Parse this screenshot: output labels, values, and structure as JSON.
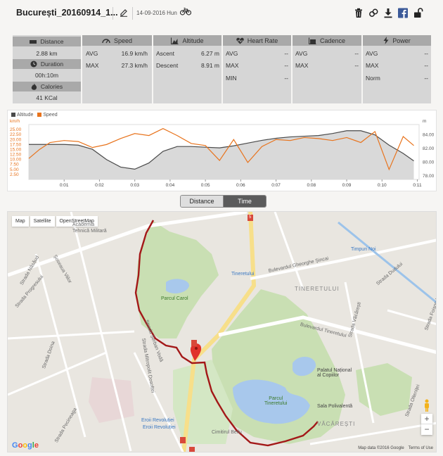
{
  "header": {
    "title": "București_20160914_1...",
    "date": "14-09-2016 Hun",
    "colors": {
      "facebook": "#3b5998"
    }
  },
  "stats": {
    "distance_label": "Distance",
    "distance_value": "2.88 km",
    "duration_label": "Duration",
    "duration_value": "00h:10m",
    "calories_label": "Calories",
    "calories_value": "41 KCal",
    "speed": {
      "label": "Speed",
      "avg_label": "AVG",
      "avg": "16.9 km/h",
      "max_label": "MAX",
      "max": "27.3 km/h"
    },
    "altitude": {
      "label": "Altitude",
      "ascent_label": "Ascent",
      "ascent": "6.27 m",
      "descent_label": "Descent",
      "descent": "8.91 m"
    },
    "heart_rate": {
      "label": "Heart Rate",
      "avg_label": "AVG",
      "avg": "--",
      "max_label": "MAX",
      "max": "--",
      "min_label": "MIN",
      "min": "--"
    },
    "cadence": {
      "label": "Cadence",
      "avg_label": "AVG",
      "avg": "--",
      "max_label": "MAX",
      "max": "--"
    },
    "power": {
      "label": "Power",
      "avg_label": "AVG",
      "avg": "--",
      "max_label": "MAX",
      "max": "--",
      "norm_label": "Norm",
      "norm": "--"
    }
  },
  "chart_data": {
    "type": "line",
    "legend": [
      "Altitude",
      "Speed"
    ],
    "left_axis_unit": "km/h",
    "right_axis_unit": "m",
    "left_ticks": [
      "25.00",
      "22.50",
      "20.00",
      "17.50",
      "15.00",
      "12.50",
      "10.00",
      "7.50",
      "5.00",
      "2.50"
    ],
    "right_ticks": [
      "84.00",
      "82.00",
      "80.00",
      "78.00"
    ],
    "x_ticks": [
      "0:01",
      "0:02",
      "0:03",
      "0:04",
      "0:05",
      "0:06",
      "0:07",
      "0:08",
      "0:09",
      "0:10",
      "0:11"
    ],
    "ylim_speed": [
      0,
      27.5
    ],
    "ylim_alt": [
      77.5,
      85.5
    ],
    "x_minutes": [
      0,
      0.3,
      0.6,
      1.0,
      1.4,
      1.8,
      2.2,
      2.6,
      3.0,
      3.4,
      3.8,
      4.2,
      4.6,
      5.0,
      5.4,
      5.8,
      6.2,
      6.6,
      7.0,
      7.4,
      7.8,
      8.2,
      8.6,
      9.0,
      9.4,
      9.8,
      10.2,
      10.6,
      10.9
    ],
    "altitude": [
      82.6,
      82.6,
      82.6,
      82.6,
      82.5,
      81.9,
      80.4,
      79.3,
      79.0,
      79.9,
      81.6,
      82.3,
      82.3,
      82.2,
      82.1,
      82.4,
      82.8,
      83.2,
      83.5,
      83.7,
      83.8,
      83.9,
      84.2,
      84.6,
      84.6,
      84.0,
      82.5,
      81.3,
      80.2
    ],
    "speed": [
      10.5,
      15.0,
      18.5,
      19.5,
      19.0,
      16.0,
      17.5,
      20.5,
      23.0,
      22.0,
      25.5,
      22.0,
      18.0,
      17.0,
      9.5,
      20.0,
      8.5,
      16.5,
      20.0,
      19.5,
      21.0,
      20.5,
      19.5,
      21.0,
      18.5,
      24.0,
      5.0,
      21.5,
      17.0
    ],
    "colors": {
      "altitude": "#4a4a4a",
      "speed": "#e8731c"
    }
  },
  "toggle": {
    "distance": "Distance",
    "time": "Time"
  },
  "map": {
    "types": [
      "Map",
      "Satellite",
      "OpenStreetMap"
    ],
    "labels": {
      "academia": "Academia",
      "tehnica": "Tehnică Militară",
      "parcul_carol": "Parcul Carol",
      "tineretului_area": "TINERETULUI",
      "parcul_tineretului": "Parcul\nTineretului",
      "palatul": "Palatul Național\nal Copiilor",
      "sala": "Sala Polivalentă",
      "vacaresti": "VĂCĂREȘTI",
      "timpuri_noi": "Timpuri Noi",
      "tineretului_metro": "Tineretului",
      "eroii_1": "Eroii Revoluției",
      "eroii_2": "Eroii Revoluției",
      "cimitirul": "Cimitirul Bellu",
      "bd_gheorghe": "Bulevardul Gheorghe Șincai",
      "bd_tineretului": "Bulevardul Tineretului",
      "str_nasaud": "Strada Năsăud",
      "sos_viilor": "Șoseaua Viilor",
      "str_progresului": "Strada Progresului",
      "str_doina": "Strada Doina",
      "str_pecineaga": "Strada Pecineaga",
      "str_serban": "Strada Șerban Vodă",
      "str_mitropolit": "Strada Mitropolit Dosoftei",
      "str_vacaresti": "Strada Văcărești",
      "str_oltenitei": "Strada Olteniței",
      "str_foisorului": "Strada Foișorului",
      "str_dudului": "Strada Dudului",
      "road_5": "5"
    },
    "attribution": "Map data ©2016 Google",
    "terms": "Terms of Use",
    "google": "Google"
  }
}
